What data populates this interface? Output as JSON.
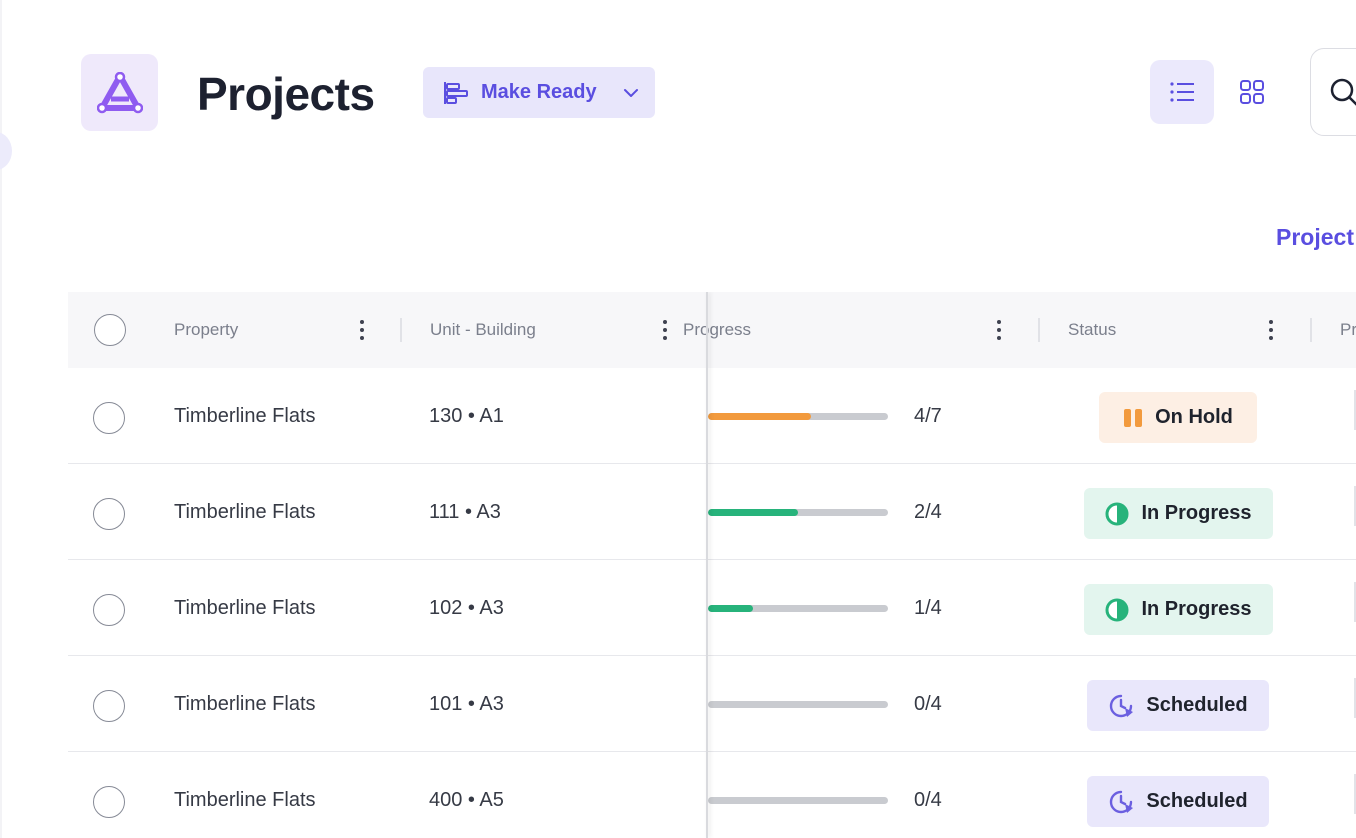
{
  "header": {
    "title": "Projects",
    "view_select_label": "Make Ready",
    "header_link": "Project"
  },
  "table": {
    "columns": {
      "property": "Property",
      "unit_building": "Unit - Building",
      "progress": "Progress",
      "status": "Status",
      "next": "Pr"
    },
    "rows": [
      {
        "property": "Timberline Flats",
        "unit": "130 • A1",
        "progress_text": "4/7",
        "progress_fraction": 0.571,
        "progress_color": "#f29a3d",
        "status": "On Hold",
        "status_kind": "hold"
      },
      {
        "property": "Timberline Flats",
        "unit": "111 • A3",
        "progress_text": "2/4",
        "progress_fraction": 0.5,
        "progress_color": "#27b37b",
        "status": "In Progress",
        "status_kind": "progress"
      },
      {
        "property": "Timberline Flats",
        "unit": "102 • A3",
        "progress_text": "1/4",
        "progress_fraction": 0.25,
        "progress_color": "#27b37b",
        "status": "In Progress",
        "status_kind": "progress"
      },
      {
        "property": "Timberline Flats",
        "unit": "101 • A3",
        "progress_text": "0/4",
        "progress_fraction": 0,
        "progress_color": "#27b37b",
        "status": "Scheduled",
        "status_kind": "scheduled"
      },
      {
        "property": "Timberline Flats",
        "unit": "400 • A5",
        "progress_text": "0/4",
        "progress_fraction": 0,
        "progress_color": "#27b37b",
        "status": "Scheduled",
        "status_kind": "scheduled"
      }
    ]
  },
  "icons": {
    "logo": "triangle-logo-icon",
    "view_select": "gantt-icon",
    "chevron": "chevron-down-icon",
    "list_view": "list-icon",
    "grid_view": "grid-icon",
    "search": "search-icon",
    "kebab": "more-vertical-icon",
    "on_hold": "pause-icon",
    "in_progress": "half-circle-icon",
    "scheduled": "clock-icon"
  },
  "colors": {
    "accent": "#5a4ee0",
    "on_hold": "#f29a3d",
    "in_progress": "#27b37b",
    "scheduled": "#6b5fe0"
  }
}
